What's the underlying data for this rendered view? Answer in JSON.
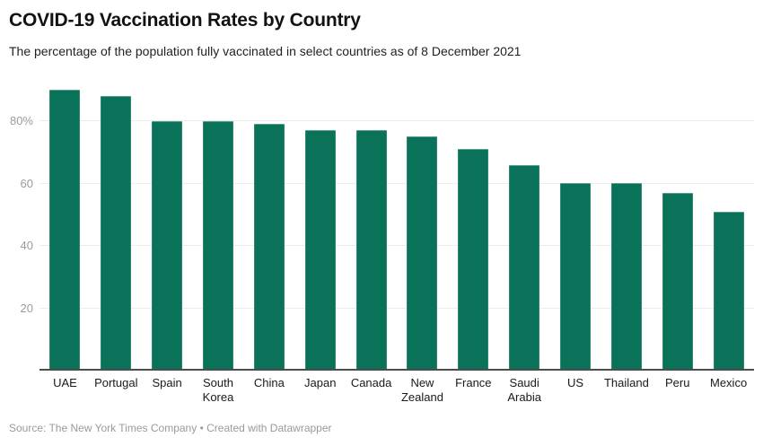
{
  "header": {
    "title": "COVID-19 Vaccination Rates by Country",
    "subtitle": "The percentage of the population fully vaccinated in select countries as of 8 December 2021"
  },
  "footer": {
    "source": "Source: The New York Times Company",
    "separator": "•",
    "attribution": "Created with Datawrapper"
  },
  "chart_data": {
    "type": "bar",
    "title": "COVID-19 Vaccination Rates by Country",
    "subtitle": "The percentage of the population fully vaccinated in select countries as of 8 December 2021",
    "categories": [
      "UAE",
      "Portugal",
      "Spain",
      "South Korea",
      "China",
      "Japan",
      "Canada",
      "New Zealand",
      "France",
      "Saudi Arabia",
      "US",
      "Thailand",
      "Peru",
      "Mexico"
    ],
    "values": [
      90,
      88,
      80,
      80,
      79,
      77,
      77,
      75,
      71,
      66,
      60,
      60,
      57,
      51
    ],
    "xlabel": "",
    "ylabel": "",
    "ylim": [
      0,
      91.5
    ],
    "y_ticks": [
      {
        "value": 20,
        "label": "20"
      },
      {
        "value": 40,
        "label": "40"
      },
      {
        "value": 60,
        "label": "60"
      },
      {
        "value": 80,
        "label": "80%"
      }
    ],
    "grid": "horizontal",
    "legend": "none",
    "bar_color": "#0a7258",
    "grid_color": "#ececec",
    "axis_color": "#4c4c4c",
    "tick_label_color": "#9c9c9c",
    "category_label_color": "#191919"
  }
}
